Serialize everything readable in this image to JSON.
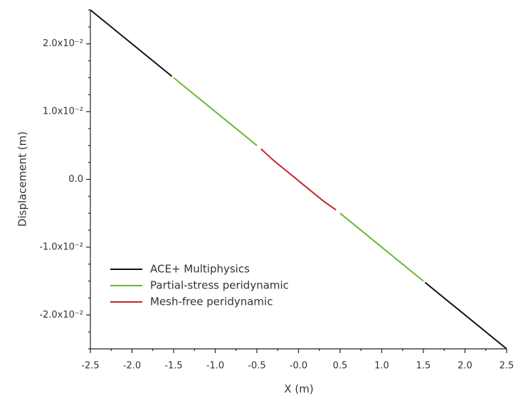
{
  "chart_data": {
    "type": "line",
    "xlabel": "X (m)",
    "ylabel": "Displacement (m)",
    "xlim": [
      -2.5,
      2.5
    ],
    "xticks": [
      -2.5,
      {
        "value": -2,
        "label": "-2.0"
      },
      -1.5,
      {
        "value": -1,
        "label": "-1.0"
      },
      -0.5,
      {
        "value": 0,
        "label": "-0.0"
      },
      0.5,
      {
        "value": 1,
        "label": "1.0"
      },
      1.5,
      {
        "value": 2,
        "label": "2.0"
      },
      2.5
    ],
    "ylim": [
      -0.025,
      0.025
    ],
    "yticks": [
      {
        "value": -0.02,
        "label": "-2.0x10⁻²"
      },
      {
        "value": -0.01,
        "label": "-1.0x10⁻²"
      },
      {
        "value": 0,
        "label": "0.0"
      },
      {
        "value": 0.01,
        "label": "1.0x10⁻²"
      },
      {
        "value": 0.02,
        "label": "2.0x10⁻²"
      }
    ],
    "legend": "lower left",
    "series": [
      {
        "name": "ACE+ Multiphysics",
        "color": "#111111",
        "x": [
          -2.5,
          -1.52,
          0,
          1.52,
          2.5
        ],
        "values": [
          0.025,
          0.0152,
          null,
          -0.0152,
          -0.025
        ]
      },
      {
        "name": "Partial-stress peridynamic",
        "color": "#6ab82e",
        "x": [
          -1.5,
          -0.5,
          0,
          0.5,
          1.5
        ],
        "values": [
          0.015,
          0.005,
          null,
          -0.005,
          -0.015
        ]
      },
      {
        "name": "Mesh-free peridynamic",
        "color": "#c8202f",
        "x": [
          -0.45,
          -0.3,
          0.3,
          0.45
        ],
        "values": [
          0.0045,
          0.0028,
          -0.0032,
          -0.0045
        ]
      }
    ]
  }
}
